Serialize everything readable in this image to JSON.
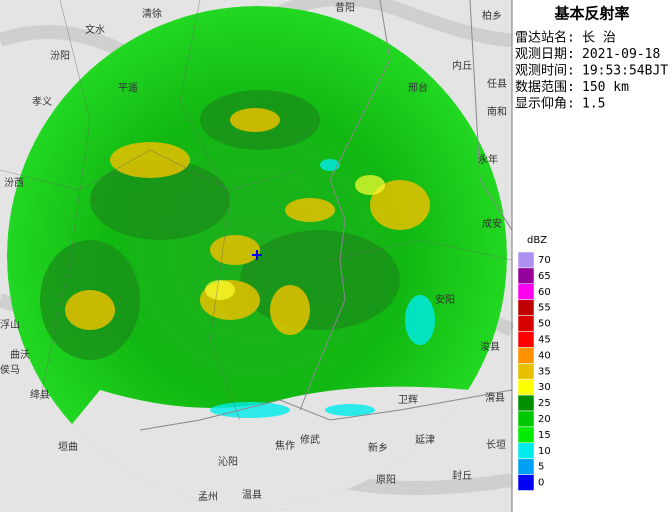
{
  "map": {
    "title": "基本反射率",
    "info": [
      {
        "label": "雷达站名:",
        "value": "长 治"
      },
      {
        "label": "观测日期:",
        "value": "2021-09-18"
      },
      {
        "label": "观测时间:",
        "value": "19:53:54BJT"
      },
      {
        "label": "数据范围:",
        "value": "150 km"
      },
      {
        "label": "显示仰角:",
        "value": "1.5"
      }
    ],
    "legend": {
      "unit": "dBZ",
      "entries": [
        {
          "value": 70,
          "color": "#ad90f0"
        },
        {
          "value": 65,
          "color": "#96009b"
        },
        {
          "value": 60,
          "color": "#ff00f0"
        },
        {
          "value": 55,
          "color": "#c00000"
        },
        {
          "value": 50,
          "color": "#d60000"
        },
        {
          "value": 45,
          "color": "#ff0000"
        },
        {
          "value": 40,
          "color": "#ff9000"
        },
        {
          "value": 35,
          "color": "#e7c000"
        },
        {
          "value": 30,
          "color": "#ffff00"
        },
        {
          "value": 25,
          "color": "#019000"
        },
        {
          "value": 20,
          "color": "#00c800"
        },
        {
          "value": 15,
          "color": "#00ec00"
        },
        {
          "value": 10,
          "color": "#00ecec"
        },
        {
          "value": 5,
          "color": "#00a0f6"
        },
        {
          "value": 0,
          "color": "#0000f6"
        }
      ]
    },
    "places": [
      "清徐",
      "文水",
      "汾阳",
      "孝义",
      "平遥",
      "昔阳",
      "内丘",
      "柏乡",
      "任县",
      "邢台",
      "南和",
      "永年",
      "成安",
      "安阳",
      "浚县",
      "卫辉",
      "滑县",
      "延津",
      "长垣",
      "新乡",
      "原阳",
      "封丘",
      "修武",
      "焦作",
      "沁阳",
      "孟州",
      "温县",
      "垣曲",
      "绛县",
      "侯马",
      "曲沃",
      "汾西",
      "浮山"
    ]
  }
}
